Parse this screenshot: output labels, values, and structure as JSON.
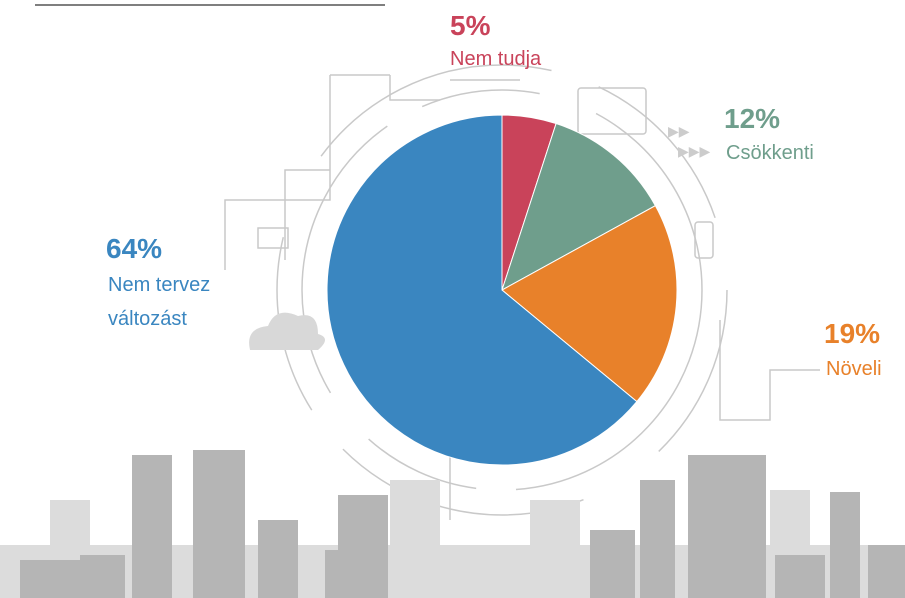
{
  "chart_data": {
    "type": "pie",
    "categories": [
      "Nem tudja",
      "Csökkenti",
      "Növeli",
      "Nem tervez változást"
    ],
    "values": [
      5,
      12,
      19,
      64
    ],
    "value_labels": [
      "5%",
      "12%",
      "19%",
      "64%"
    ],
    "colors": [
      "#c9435a",
      "#6f9e8c",
      "#e8812a",
      "#3a86c0"
    ]
  }
}
